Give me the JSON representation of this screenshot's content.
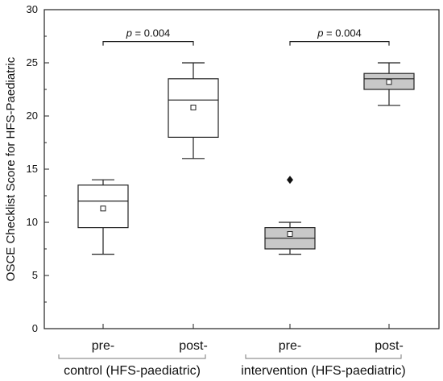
{
  "chart_data": {
    "type": "box",
    "ylabel": "OSCE Checklist Score for HFS-Paediatric",
    "ylim": [
      0,
      30
    ],
    "yticks": [
      0,
      5,
      10,
      15,
      20,
      25,
      30
    ],
    "groups": [
      {
        "label": "control (HFS-paediatric)",
        "boxes": [
          0,
          1
        ]
      },
      {
        "label": "intervention (HFS-paediatric)",
        "boxes": [
          2,
          3
        ]
      }
    ],
    "boxes": [
      {
        "label": "pre-",
        "fill": "#ffffff",
        "min": 7,
        "q1": 9.5,
        "median": 12,
        "q3": 13.5,
        "max": 14,
        "mean": 11.3,
        "outliers": []
      },
      {
        "label": "post-",
        "fill": "#ffffff",
        "min": 16,
        "q1": 18,
        "median": 21.5,
        "q3": 23.5,
        "max": 25,
        "mean": 20.8,
        "outliers": []
      },
      {
        "label": "pre-",
        "fill": "#c8c8c8",
        "min": 7,
        "q1": 7.5,
        "median": 8.5,
        "q3": 9.5,
        "max": 10,
        "mean": 8.9,
        "outliers": [
          14
        ]
      },
      {
        "label": "post-",
        "fill": "#c8c8c8",
        "min": 21,
        "q1": 22.5,
        "median": 23.5,
        "q3": 24,
        "max": 25,
        "mean": 23.2,
        "outliers": []
      }
    ],
    "annotations": [
      {
        "from": 0,
        "to": 1,
        "y": 27,
        "p_symbol": "p",
        "p_value": " = 0.004"
      },
      {
        "from": 2,
        "to": 3,
        "y": 27,
        "p_symbol": "p",
        "p_value": " = 0.004"
      }
    ]
  }
}
